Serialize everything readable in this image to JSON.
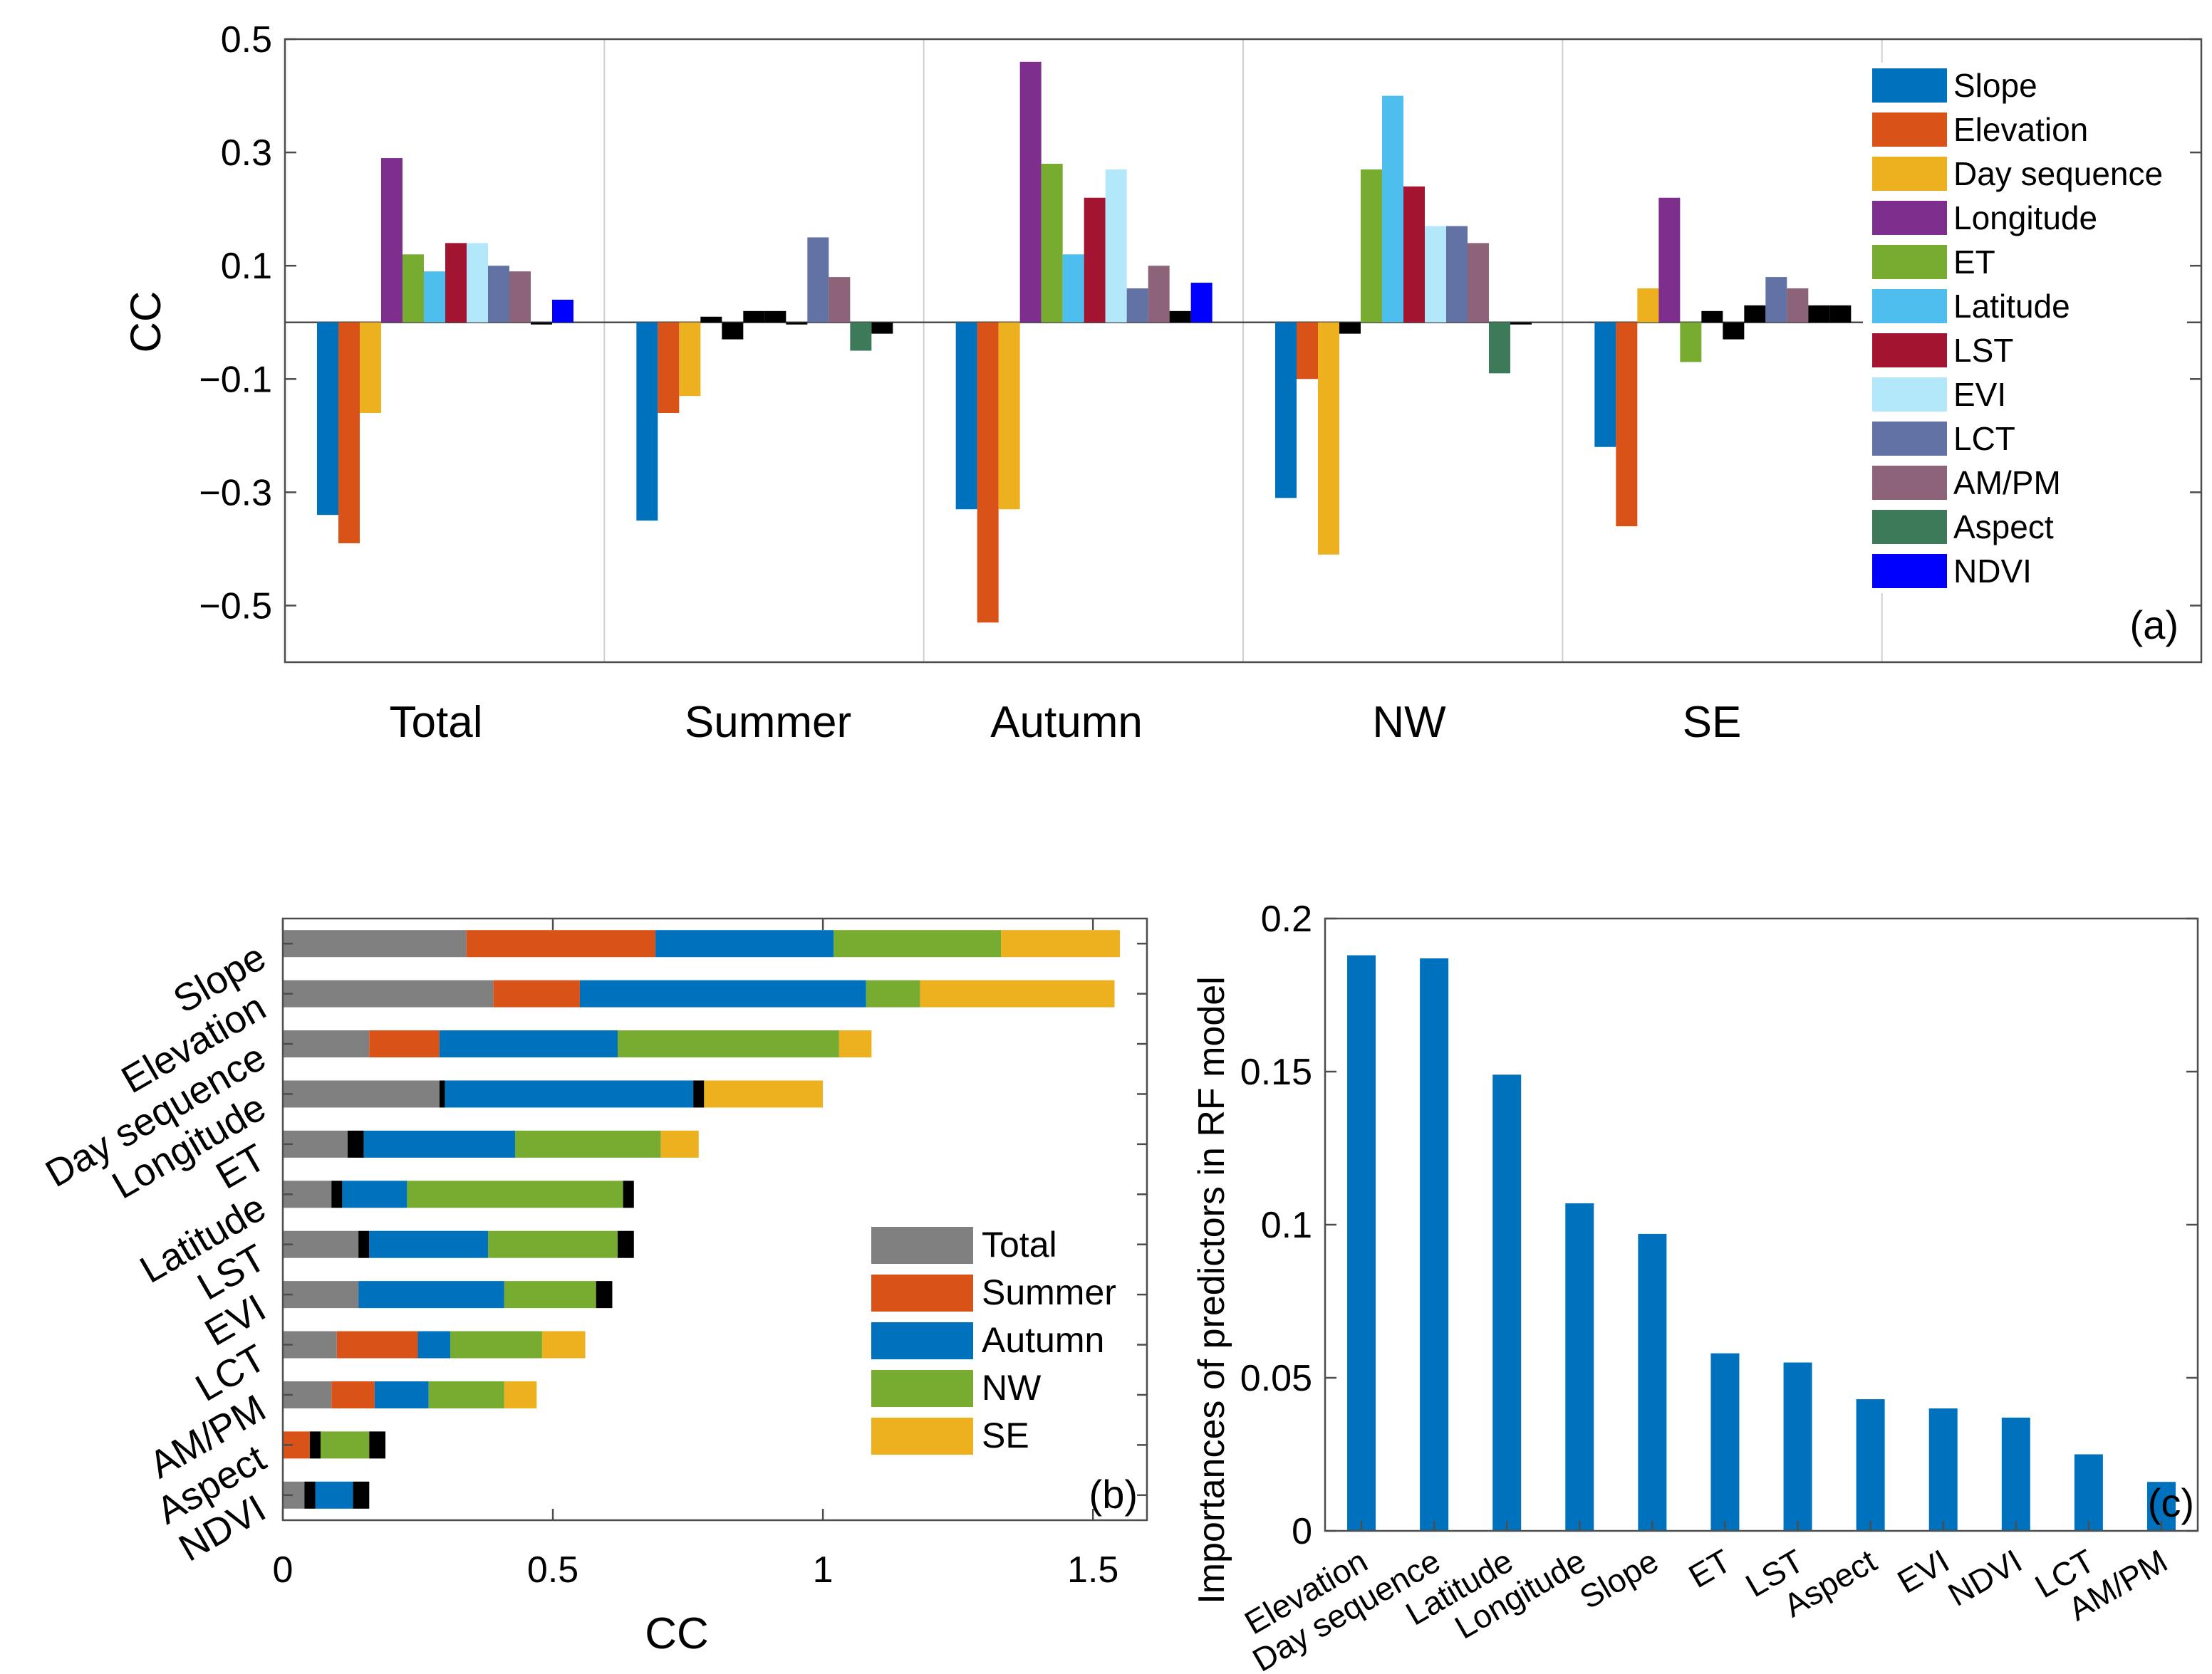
{
  "chart_data": [
    {
      "panel": "(a)",
      "type": "bar",
      "ylabel": "CC",
      "ylim": [
        -0.6,
        0.5
      ],
      "yticks": [
        0.5,
        0.3,
        0.1,
        -0.1,
        -0.3,
        -0.5
      ],
      "ytick_labels": [
        "0.5",
        "0.3",
        "0.1",
        "−0.1",
        "−0.3",
        "−0.5"
      ],
      "groups": [
        "Total",
        "Summer",
        "Autumn",
        "NW",
        "SE"
      ],
      "legend_position": "top-right",
      "series": [
        {
          "name": "Slope",
          "color": "#0072BD",
          "values": [
            -0.34,
            -0.35,
            -0.33,
            -0.31,
            -0.22
          ]
        },
        {
          "name": "Elevation",
          "color": "#D95319",
          "values": [
            -0.39,
            -0.16,
            -0.53,
            -0.1,
            -0.36
          ]
        },
        {
          "name": "Day sequence",
          "color": "#EDB120",
          "values": [
            -0.16,
            -0.13,
            -0.33,
            -0.41,
            0.06
          ]
        },
        {
          "name": "Longitude",
          "color": "#7E2F8E",
          "values": [
            0.29,
            0.01,
            0.46,
            -0.02,
            0.22
          ]
        },
        {
          "name": "ET",
          "color": "#77AC30",
          "values": [
            0.12,
            -0.03,
            0.28,
            0.27,
            -0.07
          ]
        },
        {
          "name": "Latitude",
          "color": "#4DBEEE",
          "values": [
            0.09,
            0.02,
            0.12,
            0.4,
            0.02
          ]
        },
        {
          "name": "LST",
          "color": "#A2142F",
          "values": [
            0.14,
            0.02,
            0.22,
            0.24,
            -0.03
          ]
        },
        {
          "name": "EVI",
          "color": "#B3E7FA",
          "values": [
            0.14,
            0.0,
            0.27,
            0.17,
            0.03
          ]
        },
        {
          "name": "LCT",
          "color": "#6272A4",
          "values": [
            0.1,
            0.15,
            0.06,
            0.17,
            0.08
          ]
        },
        {
          "name": "AM/PM",
          "color": "#8C6378",
          "values": [
            0.09,
            0.08,
            0.1,
            0.14,
            0.06
          ]
        },
        {
          "name": "Aspect",
          "color": "#3D7A5A",
          "values": [
            0.0,
            -0.05,
            0.02,
            -0.09,
            0.03
          ]
        },
        {
          "name": "NDVI",
          "color": "#0000FF",
          "values": [
            0.04,
            -0.02,
            0.07,
            0.0,
            0.03
          ]
        }
      ]
    },
    {
      "panel": "(b)",
      "type": "bar",
      "orientation": "horizontal-stacked",
      "xlabel": "CC",
      "xlim": [
        0,
        1.6
      ],
      "xticks": [
        0,
        0.5,
        1,
        1.5
      ],
      "xtick_labels": [
        "0",
        "0.5",
        "1",
        "1.5"
      ],
      "categories": [
        "Slope",
        "Elevation",
        "Day sequence",
        "Longitude",
        "ET",
        "Latitude",
        "LST",
        "EVI",
        "LCT",
        "AM/PM",
        "Aspect",
        "NDVI"
      ],
      "legend_position": "bottom-right",
      "series": [
        {
          "name": "Total",
          "color": "#808080",
          "values": [
            0.34,
            0.39,
            0.16,
            0.29,
            0.12,
            0.09,
            0.14,
            0.14,
            0.1,
            0.09,
            0.0,
            0.04
          ]
        },
        {
          "name": "Summer",
          "color": "#D95319",
          "values": [
            0.35,
            0.16,
            0.13,
            0.01,
            0.03,
            0.02,
            0.02,
            0.0,
            0.15,
            0.08,
            0.05,
            0.02
          ]
        },
        {
          "name": "Autumn",
          "color": "#0072BD",
          "values": [
            0.33,
            0.53,
            0.33,
            0.46,
            0.28,
            0.12,
            0.22,
            0.27,
            0.06,
            0.1,
            0.02,
            0.07
          ]
        },
        {
          "name": "NW",
          "color": "#77AC30",
          "values": [
            0.31,
            0.1,
            0.41,
            0.02,
            0.27,
            0.4,
            0.24,
            0.17,
            0.17,
            0.14,
            0.09,
            0.0
          ]
        },
        {
          "name": "SE",
          "color": "#EDB120",
          "values": [
            0.22,
            0.36,
            0.06,
            0.22,
            0.07,
            0.02,
            0.03,
            0.03,
            0.08,
            0.06,
            0.03,
            0.03
          ]
        }
      ]
    },
    {
      "panel": "(c)",
      "type": "bar",
      "ylabel": "Importances of predictors in RF model",
      "ylim": [
        0,
        0.2
      ],
      "yticks": [
        0,
        0.05,
        0.1,
        0.15,
        0.2
      ],
      "ytick_labels": [
        "0",
        "0.05",
        "0.1",
        "0.15",
        "0.2"
      ],
      "categories": [
        "Elevation",
        "Day sequence",
        "Latitude",
        "Longitude",
        "Slope",
        "ET",
        "LST",
        "Aspect",
        "EVI",
        "NDVI",
        "LCT",
        "AM/PM"
      ],
      "values": [
        0.188,
        0.187,
        0.149,
        0.107,
        0.097,
        0.058,
        0.055,
        0.043,
        0.04,
        0.037,
        0.025,
        0.016
      ],
      "color": "#0072BD"
    }
  ]
}
